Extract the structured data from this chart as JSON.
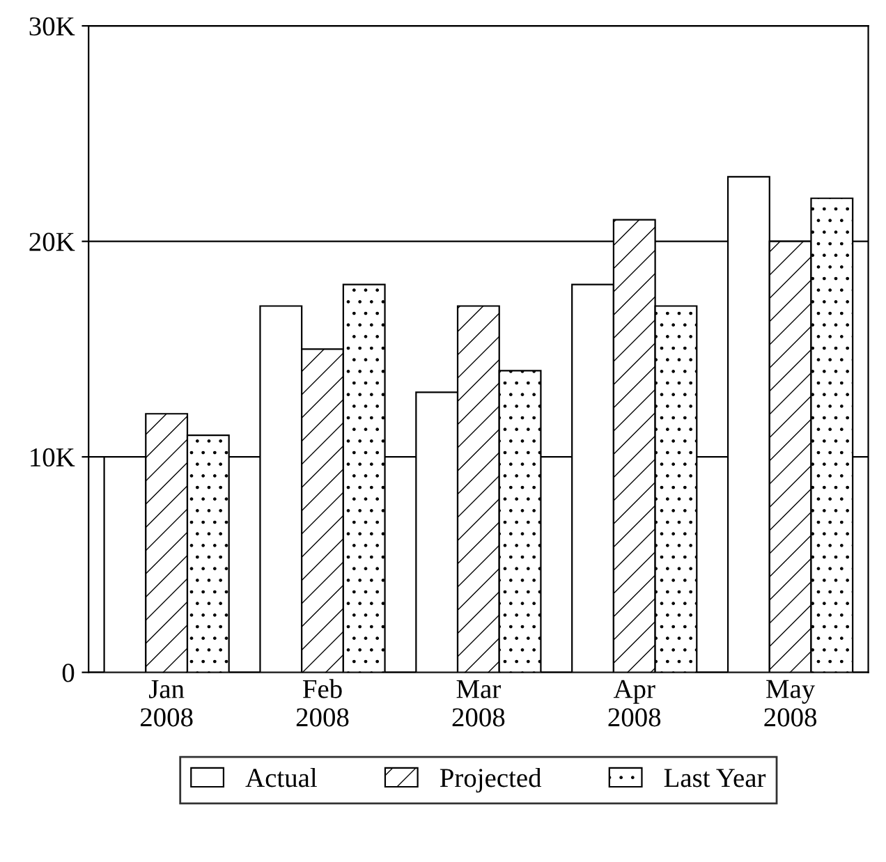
{
  "chart_data": {
    "type": "bar",
    "categories": [
      "Jan\n2008",
      "Feb\n2008",
      "Mar\n2008",
      "Apr\n2008",
      "May\n2008"
    ],
    "series": [
      {
        "name": "Actual",
        "color": "#ffffff",
        "values": [
          10000,
          17000,
          13000,
          18000,
          23000
        ]
      },
      {
        "name": "Projected",
        "color": "#000000",
        "values": [
          12000,
          15000,
          17000,
          21000,
          20000
        ]
      },
      {
        "name": "Last Year",
        "color": "#000000",
        "values": [
          11000,
          18000,
          14000,
          17000,
          22000
        ]
      }
    ],
    "ylim": [
      0,
      30000
    ],
    "yticks": [
      0,
      {
        "value": 10000,
        "label": "10K"
      },
      {
        "value": 20000,
        "label": "20K"
      },
      {
        "value": 30000,
        "label": "30K"
      }
    ],
    "grid": "y",
    "legend": "bottom"
  }
}
